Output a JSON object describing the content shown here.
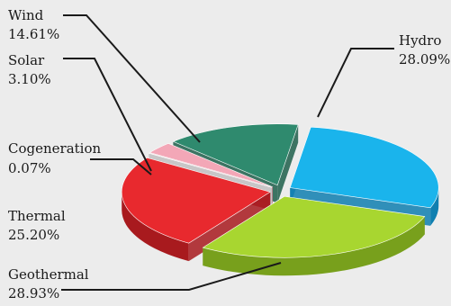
{
  "chart_data": {
    "type": "pie",
    "title": "",
    "exploded": true,
    "style": "3d",
    "slices": [
      {
        "label": "Hydro",
        "value": 28.09,
        "value_text": "28.09%",
        "color": "#1ab4ec",
        "side": "#0f7fb0"
      },
      {
        "label": "Geothermal",
        "value": 28.93,
        "value_text": "28.93%",
        "color": "#a8d630",
        "side": "#78a01c"
      },
      {
        "label": "Thermal",
        "value": 25.2,
        "value_text": "25.20%",
        "color": "#e8292e",
        "side": "#a81a1e"
      },
      {
        "label": "Cogeneration",
        "value": 0.07,
        "value_text": "0.07%",
        "color": "#f4f4f4",
        "side": "#c8c8c8"
      },
      {
        "label": "Solar",
        "value": 3.1,
        "value_text": "3.10%",
        "color": "#f3a7b7",
        "side": "#c77f8e"
      },
      {
        "label": "Wind",
        "value": 14.61,
        "value_text": "14.61%",
        "color": "#2f8a6e",
        "side": "#1f5f4b"
      }
    ]
  }
}
